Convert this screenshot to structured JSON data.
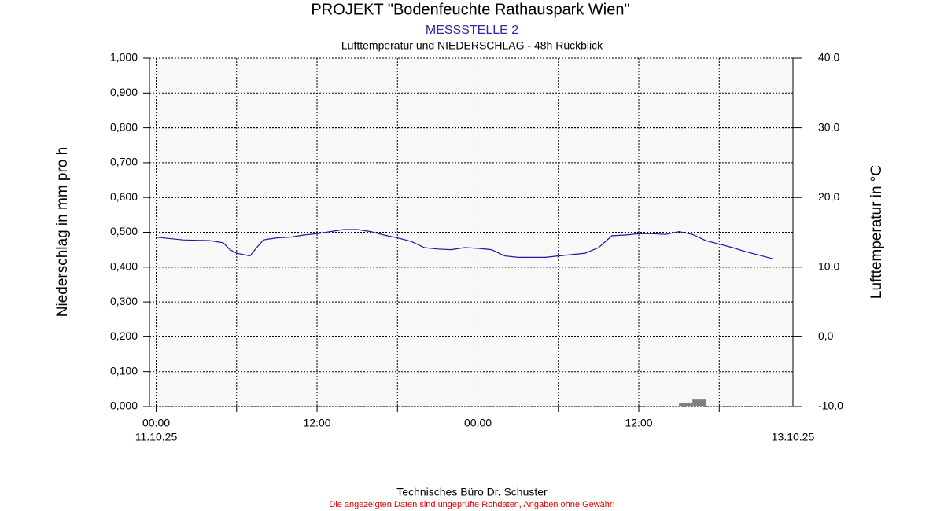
{
  "chart_data": {
    "type": "line",
    "title": "PROJEKT \"Bodenfeuchte Rathauspark Wien\"",
    "subtitle": "MESSSTELLE 2",
    "chart_subtitle": "Lufttemperatur und NIEDERSCHLAG - 48h Rückblick",
    "ylabel": "Niederschlag in mm pro h",
    "y2label": "Lufttemperatur in °C",
    "xlim": [
      -0.5,
      47.5
    ],
    "xticks": [
      {
        "value": 0,
        "label": "00:00"
      },
      {
        "value": 12,
        "label": "12:00"
      },
      {
        "value": 24,
        "label": "00:00"
      },
      {
        "value": 36,
        "label": "12:00"
      }
    ],
    "xminor_ticks": [
      6,
      18,
      30,
      42
    ],
    "x_date_labels": [
      {
        "value": 0,
        "label": "11.10.25"
      },
      {
        "value": 47.5,
        "label": "13.10.25"
      }
    ],
    "ylim": [
      0,
      1
    ],
    "yticks": [
      {
        "value": 0,
        "label": "0,000"
      },
      {
        "value": 0.1,
        "label": "0,100"
      },
      {
        "value": 0.2,
        "label": "0,200"
      },
      {
        "value": 0.3,
        "label": "0,300"
      },
      {
        "value": 0.4,
        "label": "0,400"
      },
      {
        "value": 0.5,
        "label": "0,500"
      },
      {
        "value": 0.6,
        "label": "0,600"
      },
      {
        "value": 0.7,
        "label": "0,700"
      },
      {
        "value": 0.8,
        "label": "0,800"
      },
      {
        "value": 0.9,
        "label": "0,900"
      },
      {
        "value": 1,
        "label": "1,000"
      }
    ],
    "y2lim": [
      -10,
      40
    ],
    "y2ticks": [
      {
        "value": -10,
        "label": "-10,0"
      },
      {
        "value": 0,
        "label": "0,0"
      },
      {
        "value": 10,
        "label": "10,0"
      },
      {
        "value": 20,
        "label": "20,0"
      },
      {
        "value": 30,
        "label": "30,0"
      },
      {
        "value": 40,
        "label": "40,0"
      }
    ],
    "grid": true,
    "series": [
      {
        "name": "Niederschlag",
        "type": "bar",
        "color": "#808080",
        "bar_width": 1,
        "x": [
          39,
          40
        ],
        "values": [
          0.01,
          0.02
        ]
      },
      {
        "name": "Lufttemperatur",
        "type": "line",
        "color": "#1a1aa0",
        "axis": "y2",
        "x": [
          0,
          2,
          4,
          5,
          5.5,
          6,
          7,
          7.5,
          8,
          9,
          10,
          11,
          12,
          13,
          14,
          15,
          16,
          17,
          18,
          19,
          20,
          21,
          22,
          23,
          24,
          25,
          26,
          27,
          28,
          29,
          30,
          31,
          32,
          33,
          34,
          35,
          36,
          37,
          38,
          39,
          40,
          41,
          42,
          43,
          44,
          45,
          46
        ],
        "values": [
          14.3,
          13.9,
          13.8,
          13.5,
          12.5,
          12.0,
          11.6,
          12.8,
          13.9,
          14.2,
          14.3,
          14.6,
          14.8,
          15.1,
          15.4,
          15.4,
          15.1,
          14.6,
          14.2,
          13.7,
          12.8,
          12.6,
          12.5,
          12.8,
          12.7,
          12.5,
          11.6,
          11.4,
          11.4,
          11.4,
          11.6,
          11.8,
          12.0,
          12.8,
          14.5,
          14.6,
          14.8,
          14.8,
          14.7,
          15.1,
          14.7,
          13.8,
          13.3,
          12.8,
          12.2,
          11.7,
          11.2
        ]
      }
    ]
  },
  "footer": {
    "company": "Technisches Büro Dr. Schuster",
    "disclaimer": "Die angezeigten Daten sind ungeprüfte Rohdaten, Angaben ohne Gewähr!"
  }
}
